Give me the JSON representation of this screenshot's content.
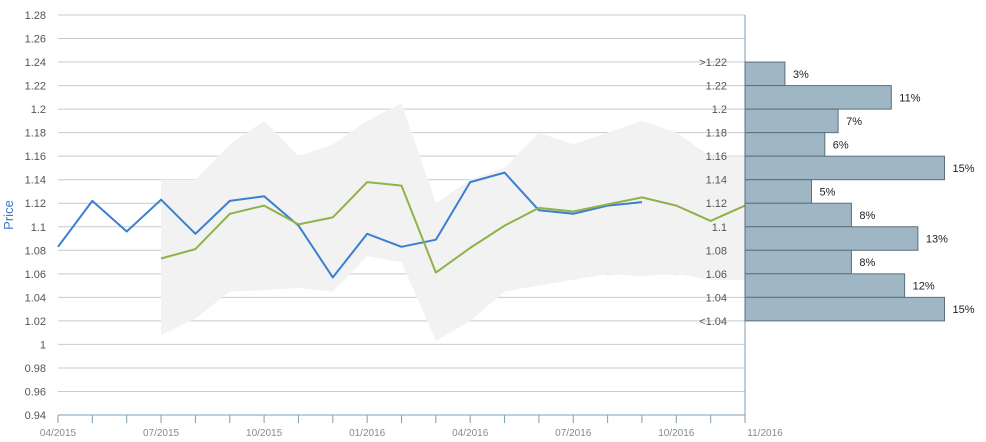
{
  "chart_data": {
    "type": "line",
    "ylabel": "Price",
    "ylim": [
      0.94,
      1.28
    ],
    "y_ticks": [
      "0.94",
      "0.96",
      "0.98",
      "1",
      "1.02",
      "1.04",
      "1.06",
      "1.08",
      "1.1",
      "1.12",
      "1.14",
      "1.16",
      "1.18",
      "1.2",
      "1.22",
      "1.24",
      "1.26",
      "1.28"
    ],
    "x_tick_labels": [
      "04/2015",
      "07/2015",
      "10/2015",
      "01/2016",
      "04/2016",
      "07/2016",
      "10/2016",
      "11/2016"
    ],
    "grid": true,
    "colors": {
      "actual": "#3a7fd0",
      "forecast": "#8fb24a",
      "band": "#f2f2f2",
      "histogram_fill": "#9fb7c4",
      "histogram_edge": "#5b6f7c",
      "axis": "#7f9fb5"
    },
    "series": [
      {
        "role": "actual",
        "x": [
          "04/2015",
          "05/2015",
          "06/2015",
          "07/2015",
          "08/2015",
          "09/2015",
          "10/2015",
          "11/2015",
          "12/2015",
          "01/2016",
          "02/2016",
          "03/2016",
          "04/2016",
          "05/2016",
          "06/2016",
          "07/2016",
          "08/2016",
          "09/2016"
        ],
        "values": [
          1.083,
          1.122,
          1.096,
          1.123,
          1.094,
          1.122,
          1.126,
          1.101,
          1.057,
          1.094,
          1.083,
          1.089,
          1.138,
          1.146,
          1.114,
          1.111,
          1.118,
          1.121
        ]
      },
      {
        "role": "forecast",
        "x": [
          "07/2015",
          "08/2015",
          "09/2015",
          "10/2015",
          "11/2015",
          "12/2015",
          "01/2016",
          "02/2016",
          "03/2016",
          "04/2016",
          "05/2016",
          "06/2016",
          "07/2016",
          "08/2016",
          "09/2016",
          "10/2016",
          "11/2016",
          "12/2016"
        ],
        "values": [
          1.073,
          1.081,
          1.111,
          1.118,
          1.102,
          1.108,
          1.138,
          1.135,
          1.061,
          1.082,
          1.101,
          1.116,
          1.113,
          1.119,
          1.125,
          1.118,
          1.105,
          1.118
        ]
      }
    ],
    "band": {
      "x": [
        "07/2015",
        "08/2015",
        "09/2015",
        "10/2015",
        "11/2015",
        "12/2015",
        "01/2016",
        "02/2016",
        "03/2016",
        "04/2016",
        "05/2016",
        "06/2016",
        "07/2016",
        "08/2016",
        "09/2016",
        "10/2016",
        "11/2016",
        "12/2016"
      ],
      "upper": [
        1.14,
        1.14,
        1.17,
        1.19,
        1.16,
        1.17,
        1.19,
        1.205,
        1.12,
        1.14,
        1.15,
        1.18,
        1.17,
        1.18,
        1.19,
        1.18,
        1.16,
        1.16
      ],
      "lower": [
        1.008,
        1.022,
        1.045,
        1.046,
        1.048,
        1.045,
        1.075,
        1.07,
        1.003,
        1.02,
        1.045,
        1.05,
        1.055,
        1.06,
        1.058,
        1.06,
        1.055,
        1.055
      ]
    },
    "histogram": {
      "bins": [
        ">1.22",
        "1.22",
        "1.2",
        "1.18",
        "1.16",
        "1.14",
        "1.12",
        "1.1",
        "1.08",
        "1.06",
        "1.04",
        "<1.04"
      ],
      "values": [
        3,
        11,
        7,
        6,
        15,
        5,
        8,
        13,
        8,
        12,
        15
      ],
      "labels": [
        "3%",
        "11%",
        "7%",
        "6%",
        "15%",
        "5%",
        "8%",
        "13%",
        "8%",
        "12%",
        "15%"
      ]
    }
  }
}
